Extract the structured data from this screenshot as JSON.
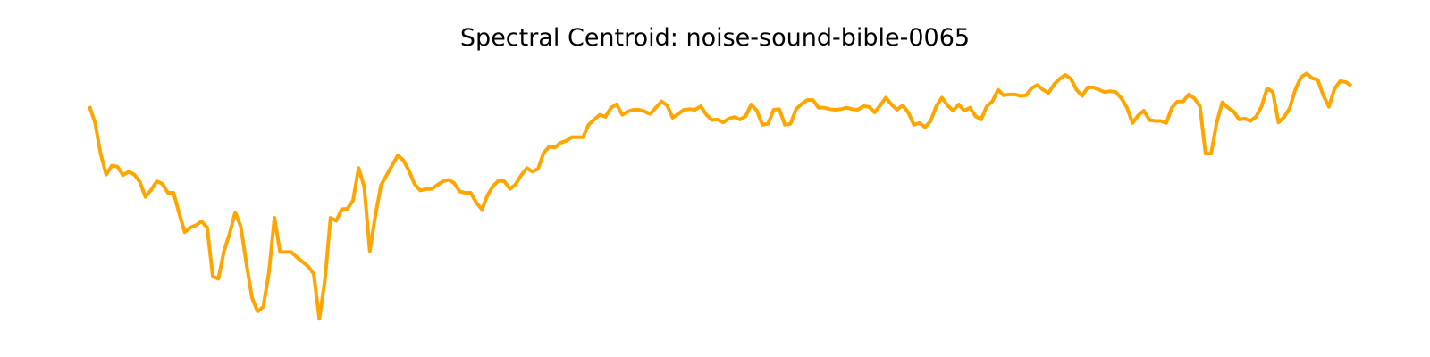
{
  "chart_data": {
    "type": "line",
    "title": "Spectral Centroid: noise-sound-bible-0065",
    "xlabel": "",
    "ylabel": "",
    "axes_visible": false,
    "grid": false,
    "legend": "none",
    "xlim": [
      0,
      240
    ],
    "ylim": [
      0,
      100
    ],
    "color": "#FFA500",
    "series": [
      {
        "values": [
          80.6,
          75.1,
          64.5,
          57.4,
          60.4,
          60.1,
          57.2,
          58.4,
          57.4,
          54.9,
          49.8,
          52.2,
          55.1,
          54.3,
          51.2,
          51.2,
          44.3,
          37.8,
          39.4,
          40.2,
          41.5,
          39.4,
          22.9,
          22.0,
          31.4,
          37.3,
          44.6,
          39.7,
          27.1,
          15.5,
          10.9,
          12.5,
          24.0,
          42.7,
          31.1,
          31.1,
          31.1,
          29.3,
          27.8,
          26.2,
          23.7,
          8.4,
          21.6,
          42.7,
          41.7,
          45.6,
          45.8,
          48.5,
          59.6,
          53.3,
          31.4,
          43.6,
          53.8,
          57.2,
          60.6,
          63.9,
          62.2,
          58.6,
          54.1,
          52.0,
          52.5,
          52.5,
          53.8,
          55.1,
          55.6,
          54.6,
          51.7,
          51.2,
          51.2,
          47.8,
          45.6,
          50.4,
          53.6,
          55.4,
          55.1,
          52.5,
          54.1,
          57.2,
          59.6,
          58.4,
          59.4,
          64.8,
          66.9,
          66.6,
          68.2,
          68.8,
          70.1,
          70.1,
          70.1,
          74.3,
          76.1,
          77.7,
          77.0,
          80.1,
          81.2,
          77.7,
          78.8,
          79.4,
          79.4,
          78.8,
          78.0,
          80.1,
          82.2,
          80.9,
          76.7,
          78.0,
          79.4,
          79.6,
          79.4,
          80.6,
          77.7,
          75.9,
          76.1,
          75.1,
          76.4,
          76.9,
          76.1,
          77.2,
          81.2,
          79.1,
          74.3,
          74.6,
          79.4,
          79.6,
          74.3,
          74.6,
          79.6,
          81.4,
          82.7,
          82.7,
          80.1,
          80.1,
          79.6,
          79.4,
          79.6,
          80.1,
          79.6,
          79.4,
          80.6,
          80.4,
          78.5,
          80.9,
          83.5,
          81.2,
          79.4,
          80.9,
          78.5,
          74.3,
          74.9,
          73.5,
          75.6,
          80.6,
          83.5,
          80.9,
          79.1,
          81.2,
          79.1,
          80.1,
          77.2,
          76.1,
          80.6,
          82.2,
          86.2,
          84.3,
          84.6,
          84.6,
          84.1,
          84.3,
          86.7,
          87.8,
          86.2,
          85.1,
          88.0,
          89.9,
          91.2,
          89.9,
          86.2,
          84.1,
          87.0,
          87.0,
          86.2,
          85.4,
          85.7,
          85.4,
          83.3,
          80.1,
          74.9,
          77.5,
          79.1,
          75.9,
          75.6,
          75.6,
          74.9,
          80.1,
          82.2,
          82.2,
          84.6,
          83.3,
          80.6,
          64.5,
          64.5,
          75.1,
          81.9,
          80.1,
          78.8,
          76.1,
          76.4,
          75.6,
          77.0,
          80.6,
          86.7,
          85.4,
          75.1,
          76.9,
          79.9,
          86.2,
          90.4,
          91.7,
          90.1,
          89.6,
          84.3,
          80.4,
          86.5,
          89.1,
          88.8,
          87.5
        ]
      }
    ]
  }
}
